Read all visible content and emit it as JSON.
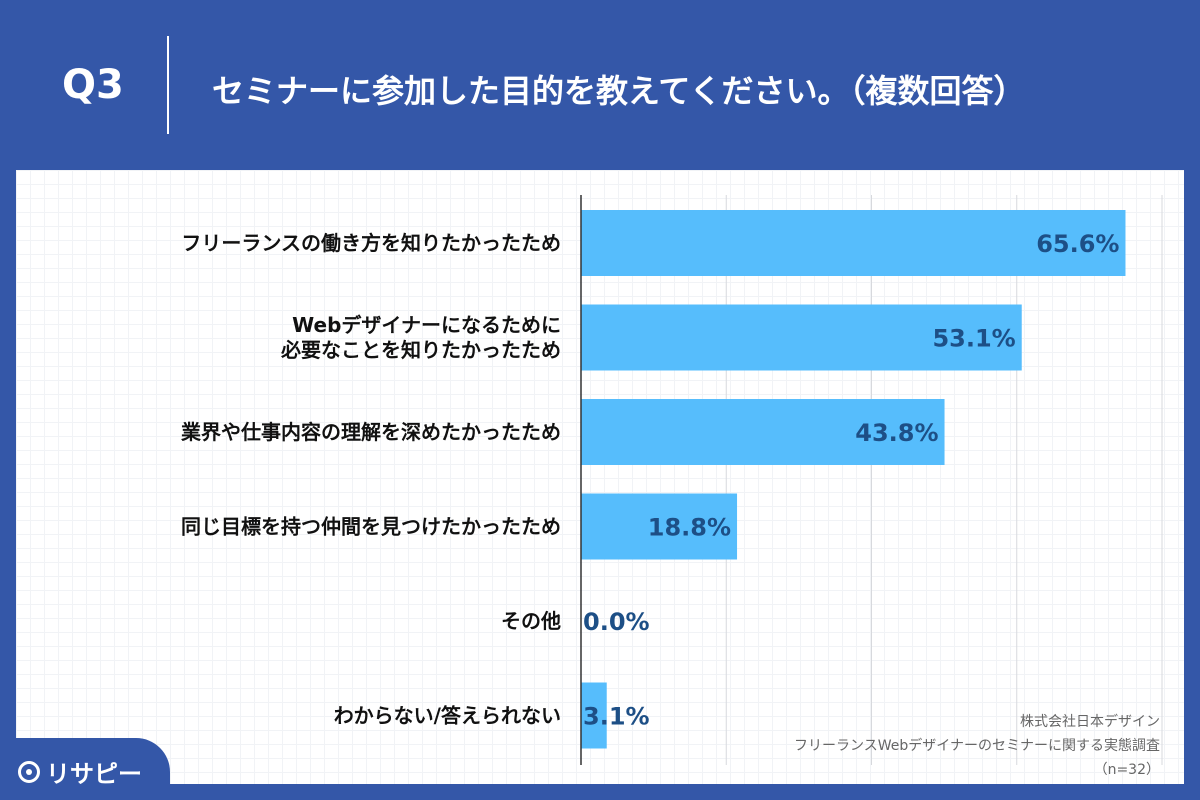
{
  "header": {
    "question": "Q3",
    "title": "セミナーに参加した目的を教えてください。（複数回答）"
  },
  "chart_data": {
    "type": "bar",
    "orientation": "horizontal",
    "title": "セミナーに参加した目的を教えてください。（複数回答）",
    "categories": [
      "フリーランスの働き方を知りたかったため",
      "Webデザイナーになるために\n必要なことを知りたかったため",
      "業界や仕事内容の理解を深めたかったため",
      "同じ目標を持つ仲間を見つけたかったため",
      "その他",
      "わからない/答えられない"
    ],
    "values": [
      65.6,
      53.1,
      43.8,
      18.8,
      0.0,
      3.1
    ],
    "value_labels": [
      "65.6%",
      "53.1%",
      "43.8%",
      "18.8%",
      "0.0%",
      "3.1%"
    ],
    "unit": "%",
    "xlim": [
      0,
      70
    ],
    "grid": true,
    "bar_color": "#56bdfc"
  },
  "footnote": {
    "company": "株式会社日本デザイン",
    "survey": "フリーランスWebデザイナーのセミナーに関する実態調査",
    "sample": "（n=32）"
  },
  "logo": {
    "text": "リサピー"
  }
}
